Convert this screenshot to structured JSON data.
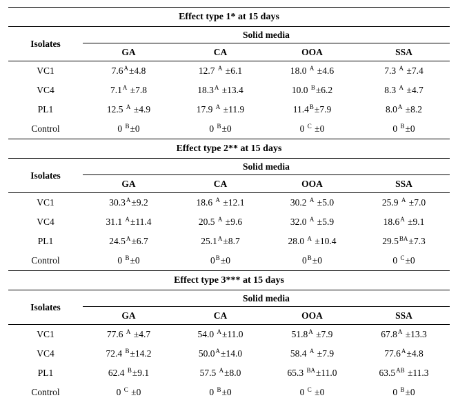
{
  "font_family": "Times New Roman",
  "background_color": "#ffffff",
  "text_color": "#000000",
  "border_color": "#000000",
  "isolates_heading": "Isolates",
  "media_heading": "Solid media",
  "columns": [
    "GA",
    "CA",
    "OOA",
    "SSA"
  ],
  "sections": [
    {
      "title": "Effect type 1* at 15 days",
      "rows": [
        {
          "label": "VC1",
          "cells": [
            {
              "val": "7.6",
              "sup": "A",
              "err": "±4.8"
            },
            {
              "val": "12.7 ",
              "sup": "A",
              "err": " ±6.1"
            },
            {
              "val": "18.0 ",
              "sup": "A",
              "err": " ±4.6"
            },
            {
              "val": "7.3 ",
              "sup": "A",
              "err": " ±7.4"
            }
          ]
        },
        {
          "label": "VC4",
          "cells": [
            {
              "val": "7.1",
              "sup": "A",
              "err": " ±7.8"
            },
            {
              "val": "18.3",
              "sup": "A",
              "err": " ±13.4"
            },
            {
              "val": "10.0 ",
              "sup": "B",
              "err": "±6.2"
            },
            {
              "val": "8.3 ",
              "sup": "A",
              "err": " ±4.7"
            }
          ]
        },
        {
          "label": "PL1",
          "cells": [
            {
              "val": "12.5 ",
              "sup": "A",
              "err": " ±4.9"
            },
            {
              "val": "17.9 ",
              "sup": "A",
              "err": " ±11.9"
            },
            {
              "val": "11.4",
              "sup": "B",
              "err": "±7.9"
            },
            {
              "val": "8.0",
              "sup": "A",
              "err": " ±8.2"
            }
          ]
        },
        {
          "label": "Control",
          "cells": [
            {
              "val": "0 ",
              "sup": "B",
              "err": "±0"
            },
            {
              "val": "0 ",
              "sup": "B",
              "err": "±0"
            },
            {
              "val": "0 ",
              "sup": "C",
              "err": " ±0"
            },
            {
              "val": "0 ",
              "sup": "B",
              "err": "±0"
            }
          ]
        }
      ]
    },
    {
      "title": "Effect type 2** at 15 days",
      "rows": [
        {
          "label": "VC1",
          "cells": [
            {
              "val": "30.3",
              "sup": "A",
              "err": "±9.2"
            },
            {
              "val": "18.6 ",
              "sup": "A",
              "err": " ±12.1"
            },
            {
              "val": "30.2 ",
              "sup": "A",
              "err": " ±5.0"
            },
            {
              "val": "25.9 ",
              "sup": "A",
              "err": " ±7.0"
            }
          ]
        },
        {
          "label": "VC4",
          "cells": [
            {
              "val": "31.1 ",
              "sup": "A",
              "err": "±11.4"
            },
            {
              "val": "20.5 ",
              "sup": "A",
              "err": " ±9.6"
            },
            {
              "val": "32.0 ",
              "sup": "A",
              "err": " ±5.9"
            },
            {
              "val": "18.6",
              "sup": "A",
              "err": " ±9.1"
            }
          ]
        },
        {
          "label": "PL1",
          "cells": [
            {
              "val": "24.5",
              "sup": "A",
              "err": "±6.7"
            },
            {
              "val": "25.1",
              "sup": "A",
              "err": "±8.7"
            },
            {
              "val": "28.0 ",
              "sup": "A",
              "err": " ±10.4"
            },
            {
              "val": "29.5",
              "sup": "BA",
              "err": "±7.3"
            }
          ]
        },
        {
          "label": "Control",
          "cells": [
            {
              "val": "0 ",
              "sup": "B",
              "err": "±0"
            },
            {
              "val": "0",
              "sup": "B",
              "err": "±0"
            },
            {
              "val": "0",
              "sup": "B",
              "err": "±0"
            },
            {
              "val": "0 ",
              "sup": "C",
              "err": "±0"
            }
          ]
        }
      ]
    },
    {
      "title": "Effect type 3*** at 15 days",
      "rows": [
        {
          "label": "VC1",
          "cells": [
            {
              "val": "77.6 ",
              "sup": "A",
              "err": " ±4.7"
            },
            {
              "val": "54.0 ",
              "sup": "A",
              "err": "±11.0"
            },
            {
              "val": "51.8",
              "sup": "A",
              "err": " ±7.9"
            },
            {
              "val": "67.8",
              "sup": "A",
              "err": " ±13.3"
            }
          ]
        },
        {
          "label": "VC4",
          "cells": [
            {
              "val": "72.4 ",
              "sup": "B",
              "err": "±14.2"
            },
            {
              "val": "50.0",
              "sup": "A",
              "err": "±14.0"
            },
            {
              "val": "58.4 ",
              "sup": "A",
              "err": " ±7.9"
            },
            {
              "val": "77.6",
              "sup": "A",
              "err": "±4.8"
            }
          ]
        },
        {
          "label": "PL1",
          "cells": [
            {
              "val": "62.4 ",
              "sup": "B",
              "err": "±9.1"
            },
            {
              "val": "57.5 ",
              "sup": "A",
              "err": "±8.0"
            },
            {
              "val": "65.3 ",
              "sup": "BA",
              "err": "±11.0"
            },
            {
              "val": "63.5",
              "sup": "AB",
              "err": " ±11.3"
            }
          ]
        },
        {
          "label": "Control",
          "cells": [
            {
              "val": "0 ",
              "sup": "C",
              "err": " ±0"
            },
            {
              "val": "0 ",
              "sup": "B",
              "err": "±0"
            },
            {
              "val": "0 ",
              "sup": "C",
              "err": " ±0"
            },
            {
              "val": "0 ",
              "sup": "B",
              "err": "±0"
            }
          ]
        }
      ]
    }
  ]
}
